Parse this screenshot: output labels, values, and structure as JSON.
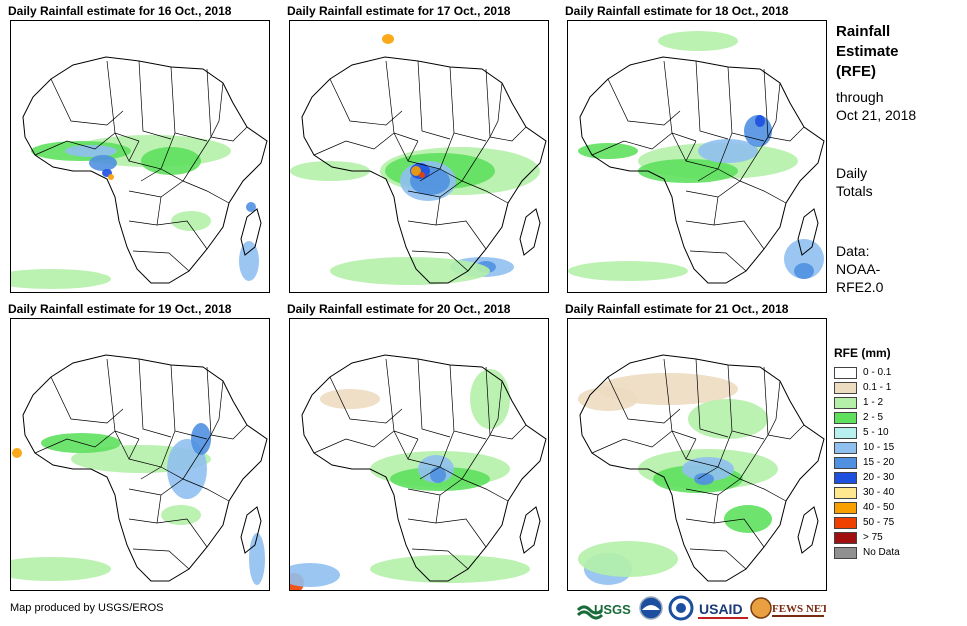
{
  "panels": [
    {
      "title": "Daily Rainfall estimate for 16 Oct., 2018"
    },
    {
      "title": "Daily Rainfall estimate for 17 Oct., 2018"
    },
    {
      "title": "Daily Rainfall estimate for 18 Oct., 2018"
    },
    {
      "title": "Daily Rainfall estimate for 19 Oct., 2018"
    },
    {
      "title": "Daily Rainfall estimate for 20 Oct., 2018"
    },
    {
      "title": "Daily Rainfall estimate for 21 Oct., 2018"
    }
  ],
  "sidebar": {
    "title_line1": "Rainfall",
    "title_line2": "Estimate",
    "title_line3": "(RFE)",
    "through_line1": "through",
    "through_line2": "Oct 21, 2018",
    "daily_line1": "Daily",
    "daily_line2": "Totals",
    "source_line1": "Data:",
    "source_line2": "NOAA-",
    "source_line3": "RFE2.0"
  },
  "legend": {
    "title": "RFE (mm)",
    "items": [
      {
        "label": "0 - 0.1",
        "color": "#ffffff"
      },
      {
        "label": "0.1 - 1",
        "color": "#ecdcc0"
      },
      {
        "label": "1 - 2",
        "color": "#b4f0a8"
      },
      {
        "label": "2 - 5",
        "color": "#5ee05e"
      },
      {
        "label": "5 - 10",
        "color": "#b8f0f0"
      },
      {
        "label": "10 - 15",
        "color": "#90c0f0"
      },
      {
        "label": "15 - 20",
        "color": "#5090e0"
      },
      {
        "label": "20 - 30",
        "color": "#1e50e0"
      },
      {
        "label": "30 - 40",
        "color": "#ffe890"
      },
      {
        "label": "40 - 50",
        "color": "#f8a000"
      },
      {
        "label": "50 - 75",
        "color": "#f04000"
      },
      {
        "label": "> 75",
        "color": "#a01010"
      },
      {
        "label": "No Data",
        "color": "#909090"
      }
    ]
  },
  "footer": {
    "credit": "Map produced by USGS/EROS",
    "logos": [
      {
        "text": "USGS",
        "icon": "usgs-logo"
      },
      {
        "text": "",
        "icon": "noaa-logo"
      },
      {
        "text": "",
        "icon": "nasa-logo"
      },
      {
        "text": "USAID",
        "icon": "usaid-logo"
      },
      {
        "text": "FEWS NET",
        "icon": "fewsnet-logo"
      }
    ]
  }
}
